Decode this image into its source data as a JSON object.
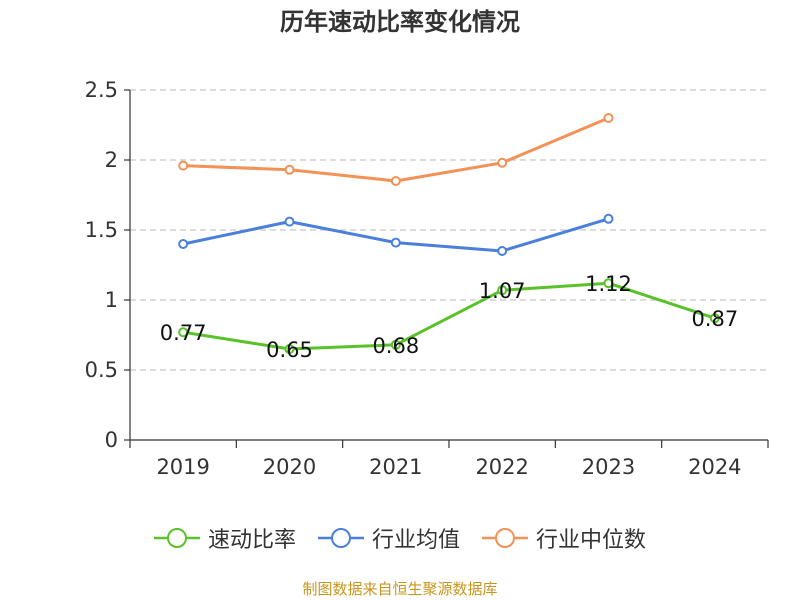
{
  "chart_data": {
    "type": "line",
    "title": "历年速动比率变化情况",
    "categories": [
      "2019",
      "2020",
      "2021",
      "2022",
      "2023",
      "2024"
    ],
    "ylim": [
      0,
      2.5
    ],
    "yticks": [
      "0",
      "0.5",
      "1",
      "1.5",
      "2",
      "2.5"
    ],
    "grid": true,
    "legend_position": "bottom",
    "series": [
      {
        "name": "速动比率",
        "color": "#5ac229",
        "values": [
          0.77,
          0.65,
          0.68,
          1.07,
          1.12,
          0.87
        ],
        "labels": [
          "0.77",
          "0.65",
          "0.68",
          "1.07",
          "1.12",
          "0.87"
        ]
      },
      {
        "name": "行业均值",
        "color": "#4a7fdc",
        "values": [
          1.4,
          1.56,
          1.41,
          1.35,
          1.58,
          null
        ]
      },
      {
        "name": "行业中位数",
        "color": "#f49156",
        "values": [
          1.96,
          1.93,
          1.85,
          1.98,
          2.3,
          null
        ]
      }
    ]
  },
  "source_note": "制图数据来自恒生聚源数据库"
}
